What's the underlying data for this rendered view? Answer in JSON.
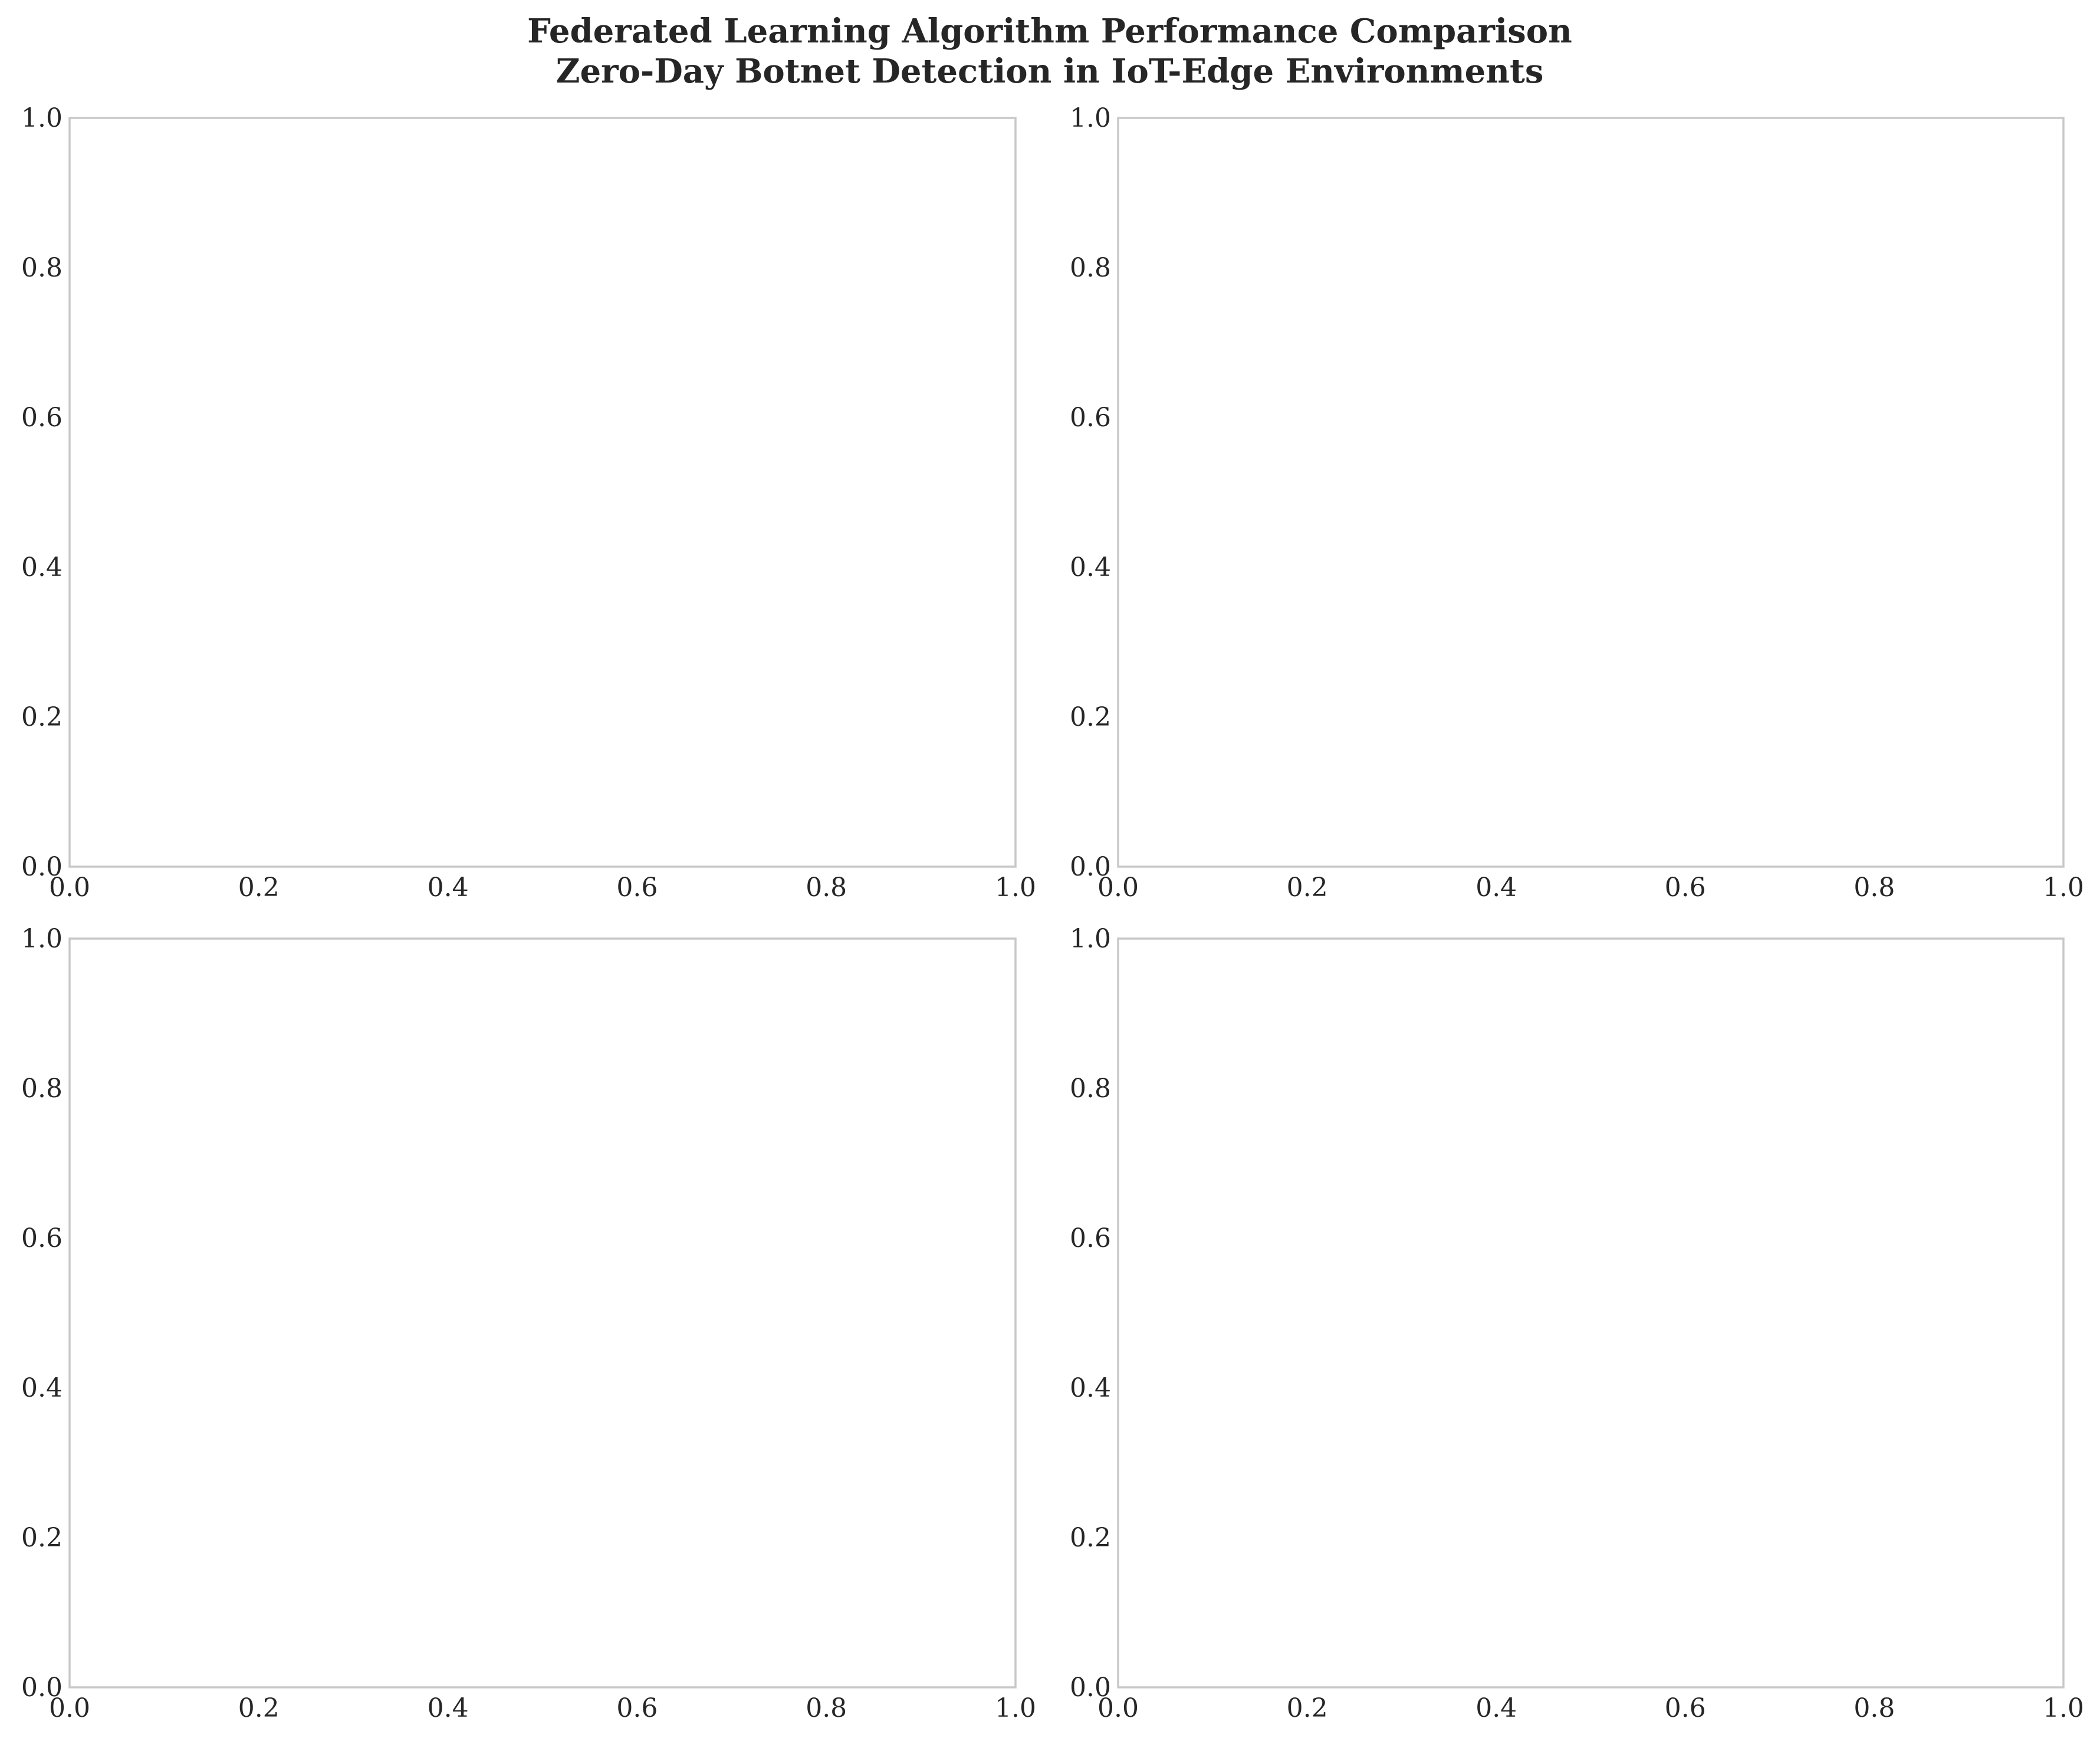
{
  "figure": {
    "title_line1": "Federated Learning Algorithm Performance Comparison",
    "title_line2": "Zero-Day Botnet Detection in IoT-Edge Environments"
  },
  "chart_data": [
    {
      "type": "line",
      "title": "",
      "xlabel": "",
      "ylabel": "",
      "xlim": [
        0.0,
        1.0
      ],
      "ylim": [
        0.0,
        1.0
      ],
      "xticks": [
        "0.0",
        "0.2",
        "0.4",
        "0.6",
        "0.8",
        "1.0"
      ],
      "yticks": [
        "0.0",
        "0.2",
        "0.4",
        "0.6",
        "0.8",
        "1.0"
      ],
      "grid": true,
      "series": []
    },
    {
      "type": "line",
      "title": "",
      "xlabel": "",
      "ylabel": "",
      "xlim": [
        0.0,
        1.0
      ],
      "ylim": [
        0.0,
        1.0
      ],
      "xticks": [
        "0.0",
        "0.2",
        "0.4",
        "0.6",
        "0.8",
        "1.0"
      ],
      "yticks": [
        "0.0",
        "0.2",
        "0.4",
        "0.6",
        "0.8",
        "1.0"
      ],
      "grid": true,
      "series": []
    },
    {
      "type": "line",
      "title": "",
      "xlabel": "",
      "ylabel": "",
      "xlim": [
        0.0,
        1.0
      ],
      "ylim": [
        0.0,
        1.0
      ],
      "xticks": [
        "0.0",
        "0.2",
        "0.4",
        "0.6",
        "0.8",
        "1.0"
      ],
      "yticks": [
        "0.0",
        "0.2",
        "0.4",
        "0.6",
        "0.8",
        "1.0"
      ],
      "grid": true,
      "series": []
    },
    {
      "type": "line",
      "title": "",
      "xlabel": "",
      "ylabel": "",
      "xlim": [
        0.0,
        1.0
      ],
      "ylim": [
        0.0,
        1.0
      ],
      "xticks": [
        "0.0",
        "0.2",
        "0.4",
        "0.6",
        "0.8",
        "1.0"
      ],
      "yticks": [
        "0.0",
        "0.2",
        "0.4",
        "0.6",
        "0.8",
        "1.0"
      ],
      "grid": true,
      "series": []
    }
  ]
}
